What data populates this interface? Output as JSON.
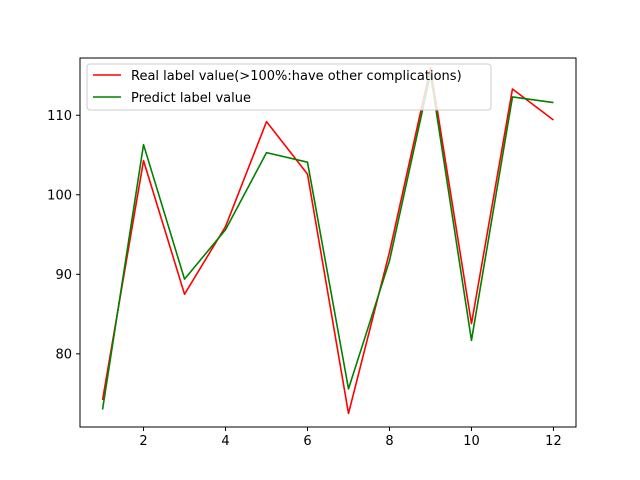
{
  "chart_data": {
    "type": "line",
    "title": "",
    "xlabel": "",
    "ylabel": "",
    "x": [
      1,
      2,
      3,
      4,
      5,
      6,
      7,
      8,
      9,
      10,
      11,
      12
    ],
    "xlim": [
      0.45,
      12.55
    ],
    "ylim": [
      70.8,
      117.2
    ],
    "xticks": [
      2,
      4,
      6,
      8,
      10,
      12
    ],
    "yticks": [
      80,
      90,
      100,
      110
    ],
    "grid": false,
    "legend_position": "top-left",
    "series": [
      {
        "name": "Real label value(>100%:have other complications)",
        "color": "#ff0000",
        "values": [
          74.2,
          104.3,
          87.5,
          96.0,
          109.2,
          102.6,
          72.5,
          92.8,
          116.0,
          83.8,
          113.3,
          109.4
        ]
      },
      {
        "name": "Predict label value",
        "color": "#008000",
        "values": [
          73.0,
          106.3,
          89.4,
          95.6,
          105.3,
          104.1,
          75.6,
          91.7,
          115.2,
          81.7,
          112.3,
          111.6
        ]
      }
    ]
  }
}
